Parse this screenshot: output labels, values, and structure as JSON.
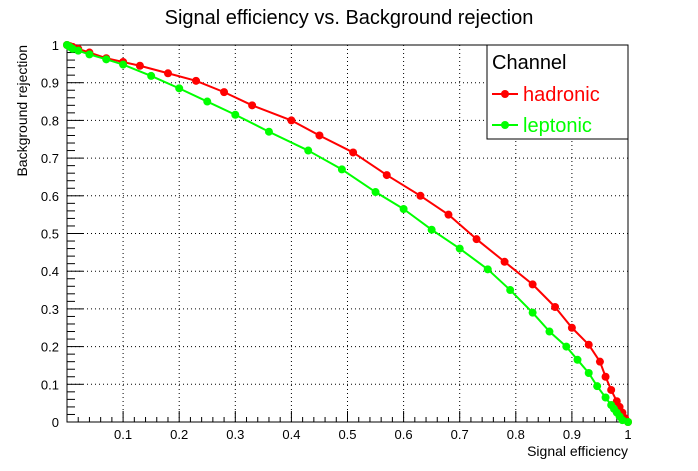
{
  "chart_data": {
    "type": "line",
    "title": "Signal efficiency vs. Background rejection",
    "xlabel": "Signal efficiency",
    "ylabel": "Background rejection",
    "xlim": [
      0,
      1
    ],
    "ylim": [
      0,
      1
    ],
    "grid": true,
    "legend_position": "top-right",
    "legend_title": "Channel",
    "x_tick_labels": [
      "0.1",
      "0.2",
      "0.3",
      "0.4",
      "0.5",
      "0.6",
      "0.7",
      "0.8",
      "0.9",
      "1"
    ],
    "y_tick_labels": [
      "0",
      "0.1",
      "0.2",
      "0.3",
      "0.4",
      "0.5",
      "0.6",
      "0.7",
      "0.8",
      "0.9",
      "1"
    ],
    "series": [
      {
        "name": "hadronic",
        "color": "#ff0000",
        "x": [
          0.0,
          0.005,
          0.01,
          0.02,
          0.04,
          0.07,
          0.1,
          0.13,
          0.18,
          0.23,
          0.28,
          0.33,
          0.4,
          0.45,
          0.51,
          0.57,
          0.63,
          0.68,
          0.73,
          0.78,
          0.83,
          0.87,
          0.9,
          0.93,
          0.95,
          0.96,
          0.97,
          0.98,
          0.985,
          0.99,
          0.995,
          1.0
        ],
        "y": [
          1.0,
          0.997,
          0.995,
          0.99,
          0.98,
          0.965,
          0.955,
          0.945,
          0.925,
          0.905,
          0.875,
          0.84,
          0.8,
          0.76,
          0.715,
          0.655,
          0.6,
          0.55,
          0.485,
          0.425,
          0.365,
          0.305,
          0.25,
          0.205,
          0.16,
          0.12,
          0.085,
          0.055,
          0.04,
          0.025,
          0.01,
          0.0
        ]
      },
      {
        "name": "leptonic",
        "color": "#00ff00",
        "x": [
          0.0,
          0.005,
          0.01,
          0.02,
          0.04,
          0.07,
          0.1,
          0.15,
          0.2,
          0.25,
          0.3,
          0.36,
          0.43,
          0.49,
          0.55,
          0.6,
          0.65,
          0.7,
          0.75,
          0.79,
          0.83,
          0.86,
          0.89,
          0.91,
          0.93,
          0.945,
          0.96,
          0.97,
          0.975,
          0.98,
          0.985,
          0.99,
          1.0
        ],
        "y": [
          1.0,
          0.995,
          0.99,
          0.985,
          0.975,
          0.962,
          0.948,
          0.918,
          0.885,
          0.85,
          0.815,
          0.77,
          0.72,
          0.67,
          0.61,
          0.565,
          0.51,
          0.46,
          0.405,
          0.35,
          0.29,
          0.24,
          0.2,
          0.165,
          0.13,
          0.095,
          0.065,
          0.045,
          0.035,
          0.025,
          0.015,
          0.005,
          0.0
        ]
      }
    ]
  }
}
